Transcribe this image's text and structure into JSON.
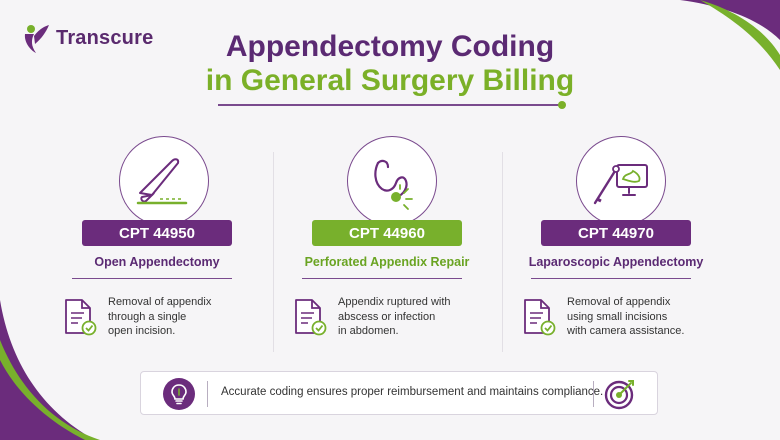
{
  "brand": {
    "name": "Transcure",
    "primary": "#6b2c7c",
    "accent": "#78b02c"
  },
  "title": {
    "line1": "Appendectomy Coding",
    "line2": "in General Surgery Billing"
  },
  "columns": [
    {
      "icon": "scalpel-icon",
      "code": "CPT 44950",
      "label": "Open Appendectomy",
      "description": "Removal of appendix\nthrough a single\nopen incision.",
      "accent": "purple"
    },
    {
      "icon": "perforated-appendix-icon",
      "code": "CPT 44960",
      "label": "Perforated Appendix Repair",
      "description": "Appendix ruptured with\nabscess or infection\nin abdomen.",
      "accent": "green"
    },
    {
      "icon": "laparoscope-monitor-icon",
      "code": "CPT 44970",
      "label": "Laparoscopic Appendectomy",
      "description": "Removal of appendix\nusing small incisions\nwith camera assistance.",
      "accent": "purple"
    }
  ],
  "banner": {
    "text": "Accurate coding ensures proper reimbursement and maintains compliance.",
    "left_icon": "lightbulb-icon",
    "right_icon": "target-icon"
  }
}
